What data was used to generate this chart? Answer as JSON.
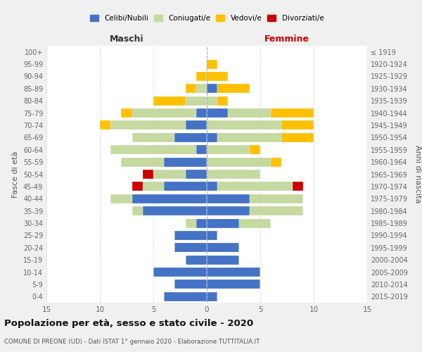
{
  "age_groups": [
    "0-4",
    "5-9",
    "10-14",
    "15-19",
    "20-24",
    "25-29",
    "30-34",
    "35-39",
    "40-44",
    "45-49",
    "50-54",
    "55-59",
    "60-64",
    "65-69",
    "70-74",
    "75-79",
    "80-84",
    "85-89",
    "90-94",
    "95-99",
    "100+"
  ],
  "birth_years": [
    "2015-2019",
    "2010-2014",
    "2005-2009",
    "2000-2004",
    "1995-1999",
    "1990-1994",
    "1985-1989",
    "1980-1984",
    "1975-1979",
    "1970-1974",
    "1965-1969",
    "1960-1964",
    "1955-1959",
    "1950-1954",
    "1945-1949",
    "1940-1944",
    "1935-1939",
    "1930-1934",
    "1925-1929",
    "1920-1924",
    "≤ 1919"
  ],
  "colors": {
    "celibi": "#4472C4",
    "coniugati": "#c5d9a0",
    "vedovi": "#ffc000",
    "divorziati": "#cc0000"
  },
  "males": {
    "celibi": [
      4,
      3,
      5,
      2,
      3,
      3,
      1,
      6,
      7,
      4,
      2,
      4,
      1,
      3,
      2,
      1,
      0,
      0,
      0,
      0,
      0
    ],
    "coniugati": [
      0,
      0,
      0,
      0,
      0,
      0,
      1,
      1,
      2,
      2,
      3,
      4,
      8,
      4,
      7,
      6,
      2,
      1,
      0,
      0,
      0
    ],
    "vedovi": [
      0,
      0,
      0,
      0,
      0,
      0,
      0,
      0,
      0,
      0,
      0,
      0,
      0,
      0,
      1,
      1,
      3,
      1,
      1,
      0,
      0
    ],
    "divorziati": [
      0,
      0,
      0,
      0,
      0,
      0,
      0,
      0,
      0,
      1,
      1,
      0,
      0,
      0,
      0,
      0,
      0,
      0,
      0,
      0,
      0
    ]
  },
  "females": {
    "celibi": [
      1,
      5,
      5,
      3,
      3,
      1,
      3,
      4,
      4,
      1,
      0,
      0,
      0,
      1,
      0,
      2,
      0,
      1,
      0,
      0,
      0
    ],
    "coniugati": [
      0,
      0,
      0,
      0,
      0,
      0,
      3,
      5,
      5,
      7,
      5,
      6,
      4,
      6,
      7,
      4,
      1,
      0,
      0,
      0,
      0
    ],
    "vedovi": [
      0,
      0,
      0,
      0,
      0,
      0,
      0,
      0,
      0,
      0,
      0,
      1,
      1,
      3,
      3,
      4,
      1,
      3,
      2,
      1,
      0
    ],
    "divorziati": [
      0,
      0,
      0,
      0,
      0,
      0,
      0,
      0,
      0,
      1,
      0,
      0,
      0,
      0,
      0,
      0,
      0,
      0,
      0,
      0,
      0
    ]
  },
  "title": "Popolazione per età, sesso e stato civile - 2020",
  "subtitle": "COMUNE DI PREONE (UD) - Dati ISTAT 1° gennaio 2020 - Elaborazione TUTTITALIA.IT",
  "xlim": 15,
  "legend_labels": [
    "Celibi/Nubili",
    "Coniugati/e",
    "Vedovi/e",
    "Divorziati/e"
  ],
  "ylabel_left": "Fasce di età",
  "ylabel_right": "Anni di nascita",
  "xlabel_left": "Maschi",
  "xlabel_right": "Femmine",
  "background_color": "#f0f0f0",
  "plot_bg_color": "#ffffff"
}
